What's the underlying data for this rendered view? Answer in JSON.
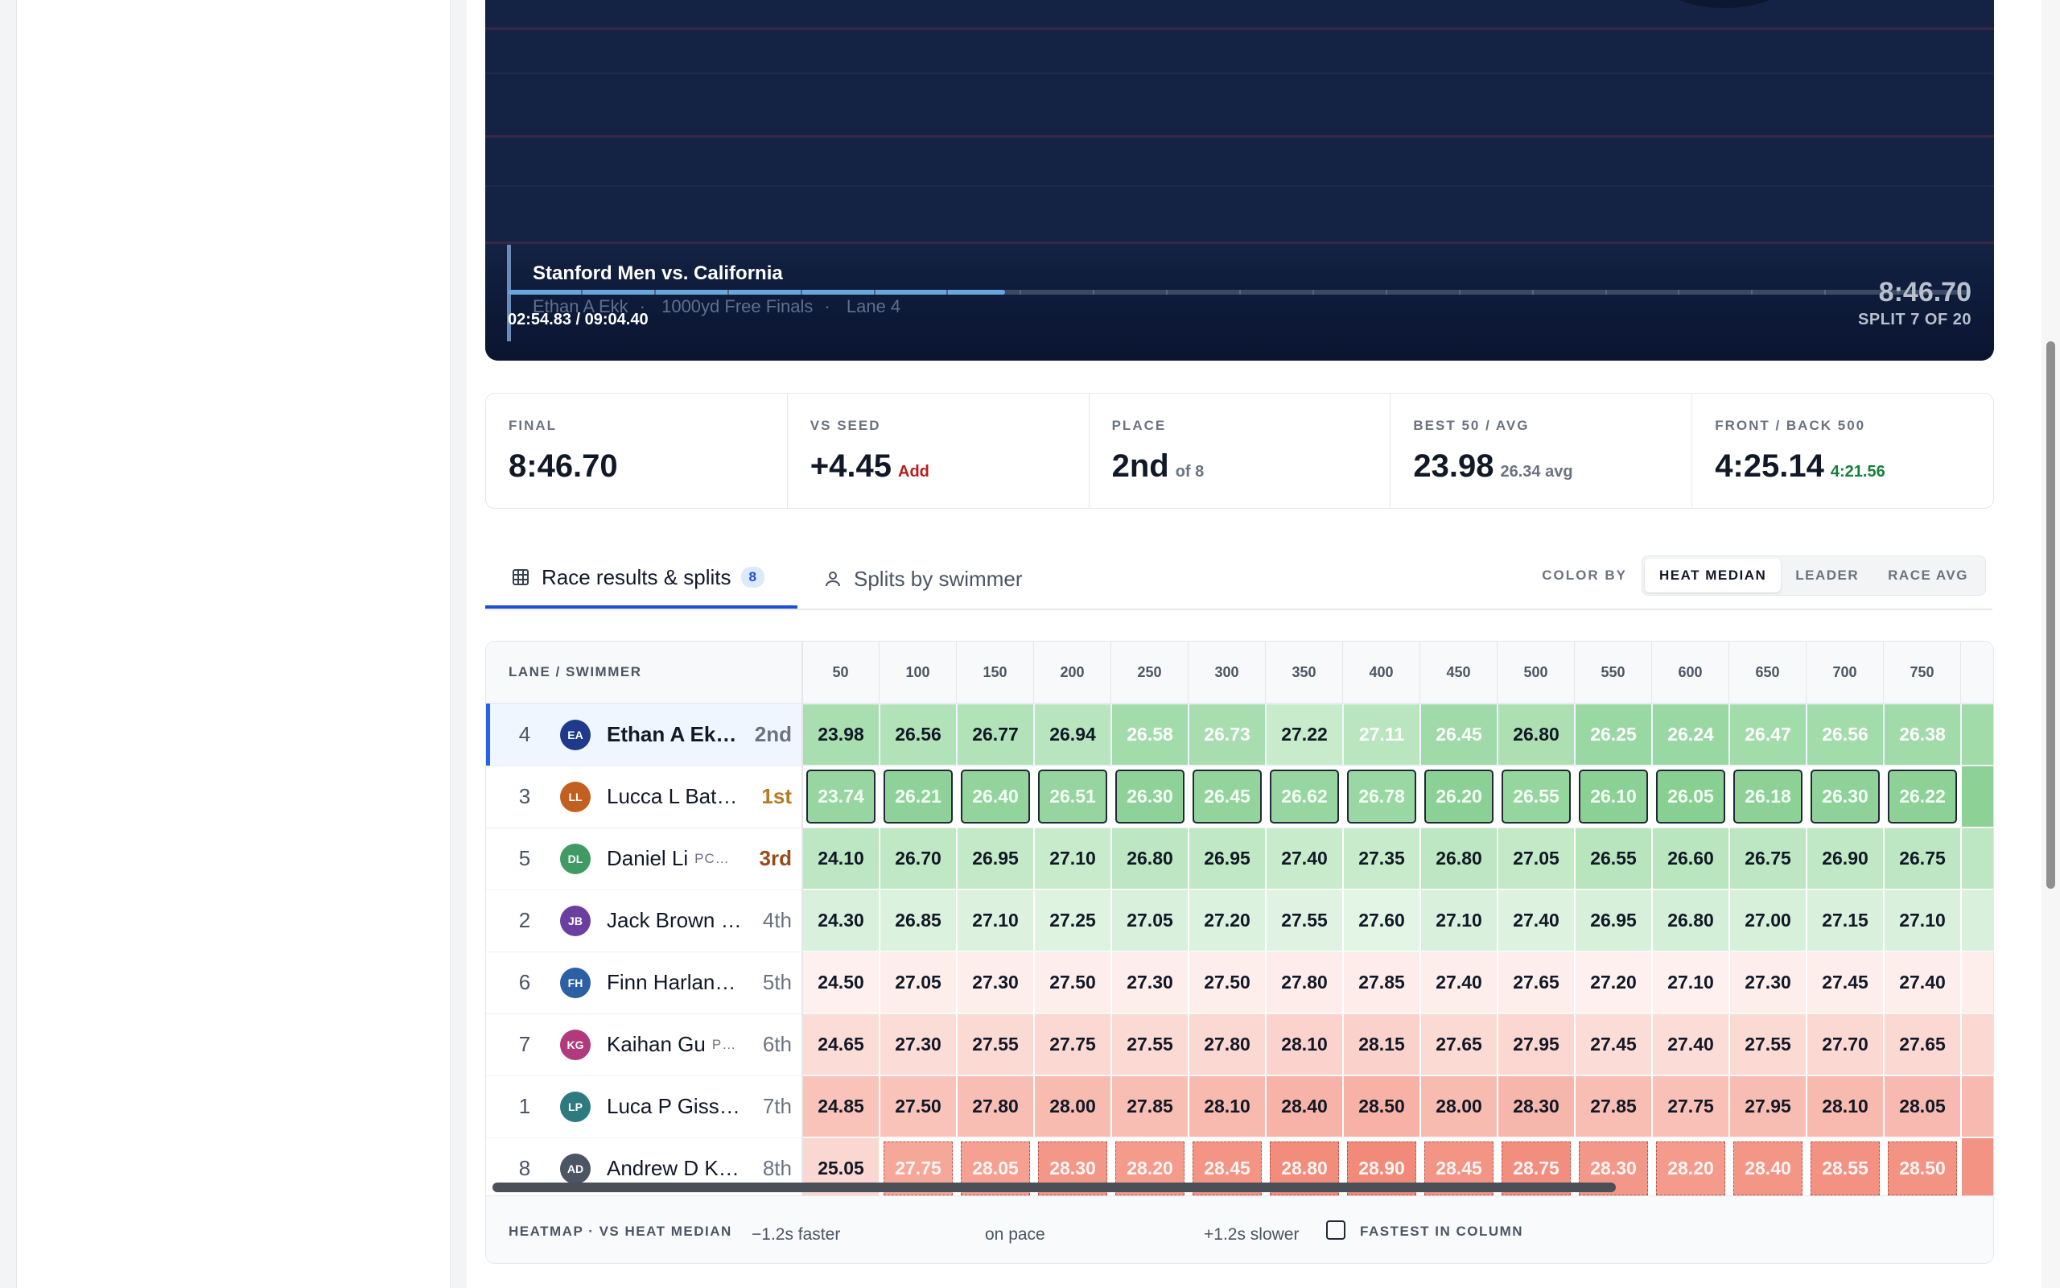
{
  "video": {
    "title": "Stanford Men vs. California",
    "swimmer": "Ethan A Ekk",
    "event": "1000yd Free Finals",
    "lane": "Lane 4",
    "timecode": "02:54.83 / 09:04.40",
    "progress_fraction": 0.34,
    "final_time": "8:46.70",
    "split_label": "SPLIT 7 OF 20"
  },
  "stats": [
    {
      "label": "FINAL",
      "value": "8:46.70",
      "sub": "",
      "sub_color": "#6b7280"
    },
    {
      "label": "VS SEED",
      "value": "+4.45",
      "sub": "Add",
      "sub_color": "#b91c1c"
    },
    {
      "label": "PLACE",
      "value": "2nd",
      "sub": "of 8",
      "sub_color": "#6b7280"
    },
    {
      "label": "BEST 50 / AVG",
      "value": "23.98",
      "sub": "26.34 avg",
      "sub_color": "#6b7280"
    },
    {
      "label": "FRONT / BACK 500",
      "value": "4:25.14",
      "sub": "4:21.56",
      "sub_color": "#15803d"
    }
  ],
  "tabs": {
    "results_label": "Race results & splits",
    "results_count": "8",
    "by_swimmer_label": "Splits by swimmer",
    "color_by_label": "COLOR BY",
    "options": [
      "HEAT MEDIAN",
      "LEADER",
      "RACE AVG"
    ],
    "active_option": "HEAT MEDIAN"
  },
  "table": {
    "swimmer_header": "LANE / SWIMMER",
    "split_headers": [
      "50",
      "100",
      "150",
      "200",
      "250",
      "300",
      "350",
      "400",
      "450",
      "500",
      "550",
      "600",
      "650",
      "700",
      "750"
    ],
    "rows": [
      {
        "lane": "4",
        "initials": "EA",
        "avatar_color": "#1e3a8a",
        "name": "Ethan A Ek…",
        "place": "2nd",
        "place_style": "me",
        "highlight": true,
        "style": "normal",
        "splits": [
          "23.98",
          "26.56",
          "26.77",
          "26.94",
          "26.58",
          "26.73",
          "27.22",
          "27.11",
          "26.45",
          "26.80",
          "26.25",
          "26.24",
          "26.47",
          "26.56",
          "26.38"
        ],
        "colors": [
          "#a9dfb0",
          "#b2e3b8",
          "#b2e3b8",
          "#b8e5bd",
          "#a3dcab",
          "#a8deaf",
          "#c7ebcb",
          "#b9e6be",
          "#9fdaa8",
          "#addfb3",
          "#9ad8a3",
          "#9ad8a3",
          "#a3dcab",
          "#a3dcab",
          "#a0dba9"
        ]
      },
      {
        "lane": "3",
        "initials": "LL",
        "avatar_color": "#c2611f",
        "name": "Lucca L Bat…",
        "place": "1st",
        "place_style": "gold",
        "highlight": false,
        "style": "boxed",
        "splits": [
          "23.74",
          "26.21",
          "26.40",
          "26.51",
          "26.30",
          "26.45",
          "26.62",
          "26.78",
          "26.20",
          "26.55",
          "26.10",
          "26.05",
          "26.18",
          "26.30",
          "26.22"
        ],
        "colors": [
          "#97d6a0",
          "#8fd299",
          "#92d49c",
          "#96d59f",
          "#8fd299",
          "#92d49c",
          "#97d6a0",
          "#9ad8a3",
          "#8bd095",
          "#95d59e",
          "#8bd095",
          "#88cf92",
          "#8dd197",
          "#8fd299",
          "#8dd197"
        ]
      },
      {
        "lane": "5",
        "initials": "DL",
        "avatar_color": "#3f9b63",
        "name": "Daniel Li",
        "tag": "PC…",
        "place": "3rd",
        "place_style": "bronze",
        "highlight": false,
        "style": "normal",
        "splits": [
          "24.10",
          "26.70",
          "26.95",
          "27.10",
          "26.80",
          "26.95",
          "27.40",
          "27.35",
          "26.80",
          "27.05",
          "26.55",
          "26.60",
          "26.75",
          "26.90",
          "26.75"
        ],
        "colors": [
          "#bde7c2",
          "#c0e8c4",
          "#c3e9c7",
          "#c8ebcb",
          "#bde7c2",
          "#c0e8c4",
          "#c8ebcb",
          "#c8ebcb",
          "#bde7c2",
          "#c3e9c7",
          "#b8e5bd",
          "#bae6bf",
          "#bde7c2",
          "#c0e8c4",
          "#bde7c2"
        ]
      },
      {
        "lane": "2",
        "initials": "JB",
        "avatar_color": "#6b3fa0",
        "name": "Jack Brown …",
        "place": "4th",
        "place_style": "normal",
        "highlight": false,
        "style": "normal",
        "splits": [
          "24.30",
          "26.85",
          "27.10",
          "27.25",
          "27.05",
          "27.20",
          "27.55",
          "27.60",
          "27.10",
          "27.40",
          "26.95",
          "26.80",
          "27.00",
          "27.15",
          "27.10"
        ],
        "colors": [
          "#d9f1dc",
          "#dbf2de",
          "#dcf2de",
          "#def3e0",
          "#d9f1dc",
          "#dbf2de",
          "#e0f3e2",
          "#e3f5e5",
          "#d9f1dc",
          "#ddf2df",
          "#d6f0d9",
          "#d4efd7",
          "#d6f0d9",
          "#d9f1dc",
          "#d9f1dc"
        ]
      },
      {
        "lane": "6",
        "initials": "FH",
        "avatar_color": "#2c5fa3",
        "name": "Finn Harlan…",
        "place": "5th",
        "place_style": "normal",
        "highlight": false,
        "style": "normal",
        "splits": [
          "24.50",
          "27.05",
          "27.30",
          "27.50",
          "27.30",
          "27.50",
          "27.80",
          "27.85",
          "27.40",
          "27.65",
          "27.20",
          "27.10",
          "27.30",
          "27.45",
          "27.40"
        ],
        "colors": [
          "#fdf0ee",
          "#fdeeec",
          "#fdeeec",
          "#fdeeec",
          "#fdeeec",
          "#fdeeec",
          "#fdece9",
          "#fdece9",
          "#fdeeec",
          "#fdeeec",
          "#fdf0ee",
          "#fdf0ee",
          "#fdeeec",
          "#fdeeec",
          "#fdeeec"
        ]
      },
      {
        "lane": "7",
        "initials": "KG",
        "avatar_color": "#b03a7b",
        "name": "Kaihan Gu",
        "tag": "P…",
        "place": "6th",
        "place_style": "normal",
        "highlight": false,
        "style": "normal",
        "splits": [
          "24.65",
          "27.30",
          "27.55",
          "27.75",
          "27.55",
          "27.80",
          "28.10",
          "28.15",
          "27.65",
          "27.95",
          "27.45",
          "27.40",
          "27.55",
          "27.70",
          "27.65"
        ],
        "colors": [
          "#fcdcd7",
          "#fcdcd7",
          "#fcdad4",
          "#fcd8d2",
          "#fcdad4",
          "#fcd8d2",
          "#fbd3cc",
          "#fbd2cb",
          "#fcdad4",
          "#fcd6d0",
          "#fcdcd7",
          "#fcdcd7",
          "#fcdad4",
          "#fcd8d2",
          "#fcd8d2"
        ]
      },
      {
        "lane": "1",
        "initials": "LP",
        "avatar_color": "#2d7b80",
        "name": "Luca P Giss…",
        "place": "7th",
        "place_style": "normal",
        "highlight": false,
        "style": "normal",
        "splits": [
          "24.85",
          "27.50",
          "27.80",
          "28.00",
          "27.85",
          "28.10",
          "28.40",
          "28.50",
          "28.00",
          "28.30",
          "27.85",
          "27.75",
          "27.95",
          "28.10",
          "28.05"
        ],
        "colors": [
          "#f9c3b9",
          "#f9c3b9",
          "#f8beb4",
          "#f8bbb0",
          "#f8beb4",
          "#f8b9ae",
          "#f7b3a7",
          "#f7b1a5",
          "#f8bbb0",
          "#f7b6ab",
          "#f8beb4",
          "#f8c0b6",
          "#f8bdb2",
          "#f8b9ae",
          "#f8bab0"
        ]
      },
      {
        "lane": "8",
        "initials": "AD",
        "avatar_color": "#4b5563",
        "name": "Andrew D K…",
        "place": "8th",
        "place_style": "normal",
        "highlight": false,
        "style": "dashed",
        "splits": [
          "25.05",
          "27.75",
          "28.05",
          "28.30",
          "28.20",
          "28.45",
          "28.80",
          "28.90",
          "28.45",
          "28.75",
          "28.30",
          "28.20",
          "28.40",
          "28.55",
          "28.50"
        ],
        "colors": [
          "#fbd7d1",
          "#f6a898",
          "#f5a090",
          "#f39888",
          "#f49b8b",
          "#f39484",
          "#f28c7b",
          "#f18a79",
          "#f39484",
          "#f28e7d",
          "#f39888",
          "#f49b8b",
          "#f39686",
          "#f39282",
          "#f39383"
        ]
      }
    ]
  },
  "legend": {
    "title": "HEATMAP · VS HEAT MEDIAN",
    "faster": "−1.2s faster",
    "pace": "on pace",
    "slower": "+1.2s slower",
    "fastest_label": "FASTEST IN COLUMN"
  }
}
